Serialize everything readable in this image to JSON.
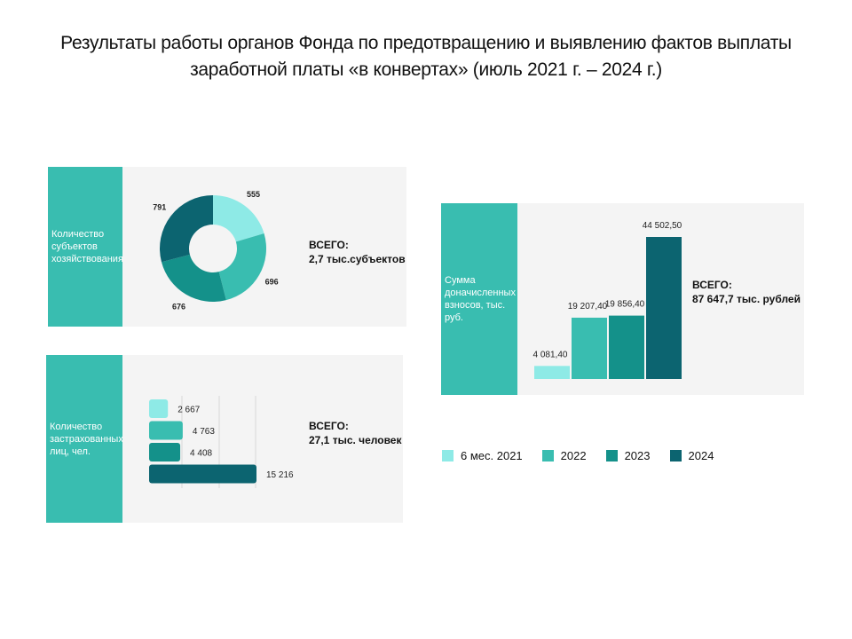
{
  "title": {
    "line1": "Результаты работы органов Фонда по предотвращению и выявлению фактов выплаты",
    "line2": "заработной платы «в конвертах» (июль 2021 г. – 2024 г.)"
  },
  "colors": {
    "c2021": "#8eeae6",
    "c2022": "#39bdb0",
    "c2023": "#14918a",
    "c2024": "#0c6470",
    "panel": "#f4f4f4",
    "side": "#39bdb0"
  },
  "panels": {
    "entities": {
      "label_lines": [
        "Количество",
        "субъектов",
        "хозяйствования"
      ],
      "total_label": "ВСЕГО:",
      "total_value": "2,7 тыс.субъектов"
    },
    "insured": {
      "label_lines": [
        "Количество",
        "застрахованных",
        "лиц, чел."
      ],
      "total_label": "ВСЕГО:",
      "total_value": "27,1 тыс. человек"
    },
    "contributions": {
      "label_lines": [
        "Сумма",
        "доначисленных",
        "взносов, тыс.",
        "руб."
      ],
      "total_label": "ВСЕГО:",
      "total_value": "87 647,7 тыс. рублей"
    }
  },
  "legend": [
    {
      "label": "6 мес. 2021",
      "color": "#8eeae6"
    },
    {
      "label": "2022",
      "color": "#39bdb0"
    },
    {
      "label": "2023",
      "color": "#14918a"
    },
    {
      "label": "2024",
      "color": "#0c6470"
    }
  ],
  "chart_data": [
    {
      "type": "pie",
      "categories": [
        "6 мес. 2021",
        "2022",
        "2023",
        "2024"
      ],
      "values": [
        555,
        696,
        676,
        791
      ],
      "labels": [
        "555",
        "696",
        "676",
        "791"
      ],
      "colors": [
        "#8eeae6",
        "#39bdb0",
        "#14918a",
        "#0c6470"
      ]
    },
    {
      "type": "bar",
      "orientation": "horizontal",
      "categories": [
        "6 мес. 2021",
        "2022",
        "2023",
        "2024"
      ],
      "values": [
        2667,
        4763,
        4408,
        15216
      ],
      "labels": [
        "2 667",
        "4 763",
        "4 408",
        "15 216"
      ],
      "colors": [
        "#8eeae6",
        "#39bdb0",
        "#14918a",
        "#0c6470"
      ]
    },
    {
      "type": "bar",
      "orientation": "vertical",
      "categories": [
        "6 мес. 2021",
        "2022",
        "2023",
        "2024"
      ],
      "values": [
        4081.4,
        19207.4,
        19856.4,
        44502.5
      ],
      "labels": [
        "4 081,40",
        "19 207,40",
        "19 856,40",
        "44 502,50"
      ],
      "colors": [
        "#8eeae6",
        "#39bdb0",
        "#14918a",
        "#0c6470"
      ]
    }
  ]
}
